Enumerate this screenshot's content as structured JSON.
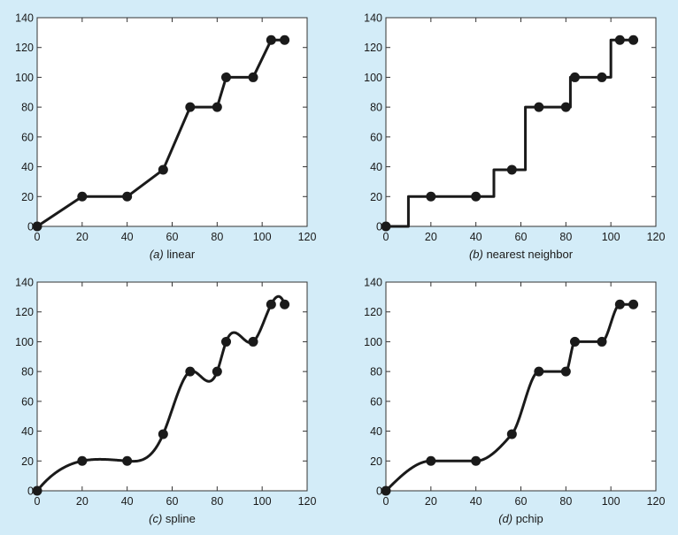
{
  "background_color": "#d3ecf8",
  "plot_background": "#ffffff",
  "line_color": "#1a1a1a",
  "chart_data": [
    {
      "type": "line",
      "method": "linear",
      "caption_letter": "(a)",
      "caption_text": " linear",
      "points": {
        "x": [
          0,
          20,
          40,
          56,
          68,
          80,
          84,
          96,
          104,
          110
        ],
        "y": [
          0,
          20,
          20,
          38,
          80,
          80,
          100,
          100,
          125,
          125
        ]
      },
      "xlim": [
        0,
        120
      ],
      "ylim": [
        0,
        140
      ],
      "xticks": [
        "0",
        "20",
        "40",
        "60",
        "80",
        "100",
        "120"
      ],
      "yticks": [
        "0",
        "20",
        "40",
        "60",
        "80",
        "100",
        "120",
        "140"
      ]
    },
    {
      "type": "line",
      "method": "nearest",
      "caption_letter": "(b)",
      "caption_text": " nearest neighbor",
      "points": {
        "x": [
          0,
          20,
          40,
          56,
          68,
          80,
          84,
          96,
          104,
          110
        ],
        "y": [
          0,
          20,
          20,
          38,
          80,
          80,
          100,
          100,
          125,
          125
        ]
      },
      "xlim": [
        0,
        120
      ],
      "ylim": [
        0,
        140
      ],
      "xticks": [
        "0",
        "20",
        "40",
        "60",
        "80",
        "100",
        "120"
      ],
      "yticks": [
        "0",
        "20",
        "40",
        "60",
        "80",
        "100",
        "120",
        "140"
      ]
    },
    {
      "type": "line",
      "method": "spline",
      "caption_letter": "(c)",
      "caption_text": " spline",
      "points": {
        "x": [
          0,
          20,
          40,
          56,
          68,
          80,
          84,
          96,
          104,
          110
        ],
        "y": [
          0,
          20,
          20,
          38,
          80,
          80,
          100,
          100,
          125,
          125
        ]
      },
      "xlim": [
        0,
        120
      ],
      "ylim": [
        0,
        140
      ],
      "xticks": [
        "0",
        "20",
        "40",
        "60",
        "80",
        "100",
        "120"
      ],
      "yticks": [
        "0",
        "20",
        "40",
        "60",
        "80",
        "100",
        "120",
        "140"
      ]
    },
    {
      "type": "line",
      "method": "pchip",
      "caption_letter": "(d)",
      "caption_text": " pchip",
      "points": {
        "x": [
          0,
          20,
          40,
          56,
          68,
          80,
          84,
          96,
          104,
          110
        ],
        "y": [
          0,
          20,
          20,
          38,
          80,
          80,
          100,
          100,
          125,
          125
        ]
      },
      "xlim": [
        0,
        120
      ],
      "ylim": [
        0,
        140
      ],
      "xticks": [
        "0",
        "20",
        "40",
        "60",
        "80",
        "100",
        "120"
      ],
      "yticks": [
        "0",
        "20",
        "40",
        "60",
        "80",
        "100",
        "120",
        "140"
      ]
    }
  ]
}
